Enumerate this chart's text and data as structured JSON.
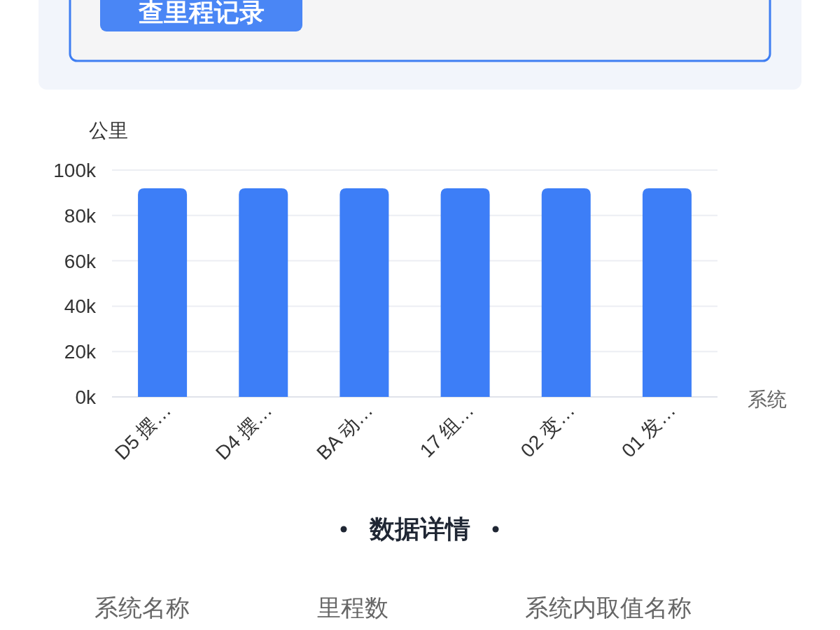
{
  "chart_data": {
    "type": "bar",
    "ylabel": "公里",
    "xlabel": "系统",
    "categories": [
      "D5 摆…",
      "D4 摆…",
      "BA 动…",
      "17 组…",
      "02 变…",
      "01 发…"
    ],
    "values": [
      92000,
      92000,
      92000,
      92000,
      92000,
      92000
    ],
    "color": "#3d7ef7",
    "ylim": [
      0,
      100000
    ],
    "yticks": [
      {
        "value": 0,
        "label": "0k"
      },
      {
        "value": 20000,
        "label": "20k"
      },
      {
        "value": 40000,
        "label": "40k"
      },
      {
        "value": 60000,
        "label": "60k"
      },
      {
        "value": 80000,
        "label": "80k"
      },
      {
        "value": 100000,
        "label": "100k"
      }
    ],
    "grid": "y",
    "annotations": [
      "查里程记录",
      "数据详情",
      "系统名称",
      "里程数",
      "系统内取值名称"
    ]
  }
}
